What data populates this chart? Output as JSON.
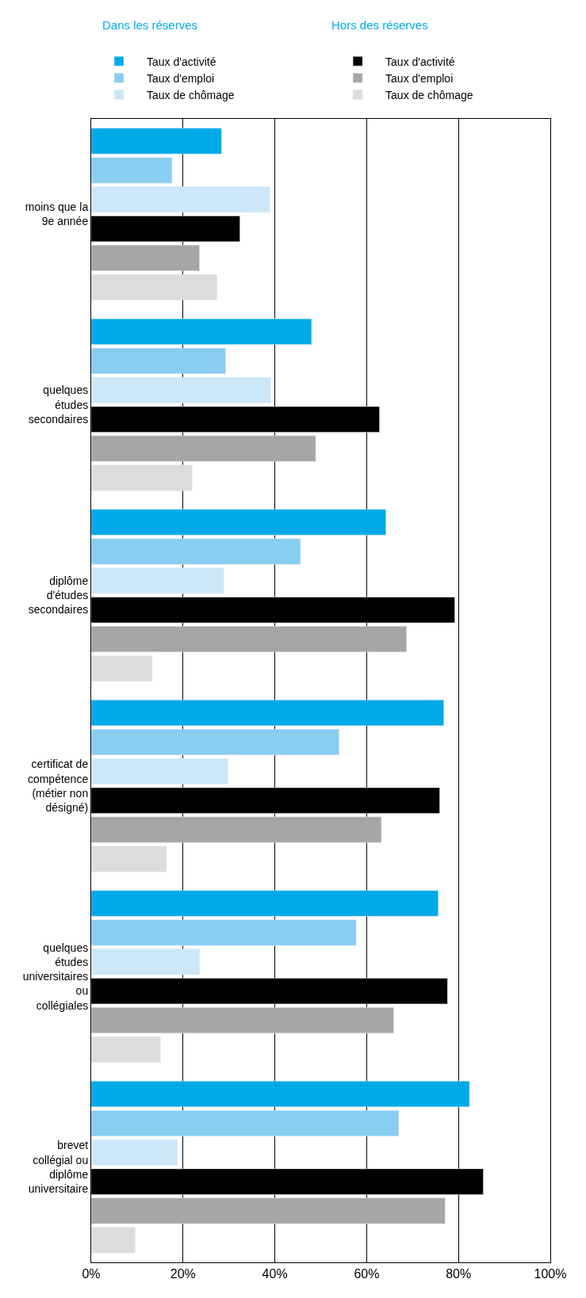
{
  "chart_data": {
    "type": "bar",
    "orientation": "horizontal",
    "categories": [
      "moins que la 9e année",
      "quelques études secondaires",
      "diplôme d'études secondaires",
      "certificat de compétence (métier non désigné)",
      "quelques études universitaires ou collégiales",
      "brevet collégial ou diplôme universitaire"
    ],
    "series": [
      {
        "name": "Taux d'activité",
        "color": "#00a9e8",
        "values": [
          28.4,
          48.0,
          64.2,
          76.8,
          75.6,
          82.4
        ]
      },
      {
        "name": "Taux d'emploi",
        "color": "#89cdf1",
        "values": [
          17.6,
          29.3,
          45.6,
          54.0,
          57.7,
          67.0
        ]
      },
      {
        "name": "Taux de chômage",
        "color": "#cce7f8",
        "values": [
          38.9,
          39.1,
          28.9,
          29.8,
          23.6,
          18.8
        ]
      },
      {
        "name": "Taux d'activité",
        "color": "#000000",
        "values": [
          32.4,
          62.8,
          79.2,
          75.9,
          77.6,
          85.4
        ]
      },
      {
        "name": "Taux d'emploi",
        "color": "#a6a6a6",
        "values": [
          23.6,
          48.9,
          68.7,
          63.2,
          65.9,
          77.1
        ]
      },
      {
        "name": "Taux de chômage",
        "color": "#dcdcdc",
        "values": [
          27.4,
          22.0,
          13.3,
          16.4,
          15.1,
          9.6
        ]
      }
    ],
    "annotations": [
      "Dans les réserves",
      "Hors des réserves"
    ],
    "xlim": [
      0,
      100
    ],
    "xticks": [
      {
        "value": 0,
        "label": "0%"
      },
      {
        "value": 20,
        "label": "20%"
      },
      {
        "value": 40,
        "label": "40%"
      },
      {
        "value": 60,
        "label": "60%"
      },
      {
        "value": 80,
        "label": "80%"
      },
      {
        "value": 100,
        "label": "100%"
      }
    ],
    "grid": "x",
    "legend": "top"
  }
}
